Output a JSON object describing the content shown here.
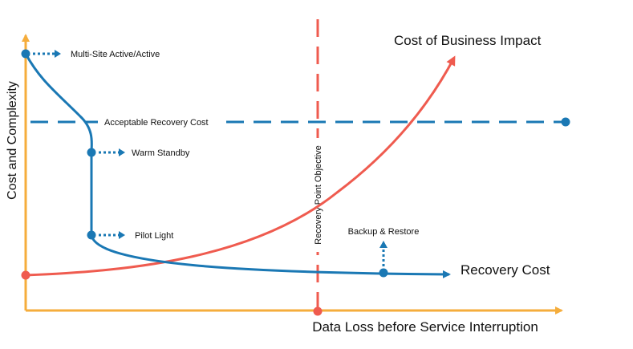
{
  "axes": {
    "y_label": "Cost and Complexity",
    "x_label": "Data Loss before Service Interruption"
  },
  "curves": {
    "recovery_cost": {
      "label": "Recovery Cost",
      "color": "#1a78b4"
    },
    "business_impact": {
      "label": "Cost of Business Impact",
      "color": "#ef5b4f"
    }
  },
  "thresholds": {
    "acceptable_recovery_cost": {
      "label": "Acceptable Recovery Cost",
      "color": "#1a78b4"
    },
    "recovery_point_objective": {
      "label": "Recovery Point Objective",
      "color": "#ef5b4f"
    }
  },
  "strategies": [
    {
      "label": "Multi-Site Active/Active"
    },
    {
      "label": "Warm Standby"
    },
    {
      "label": "Pilot Light"
    },
    {
      "label": "Backup & Restore"
    }
  ],
  "colors": {
    "axis": "#f5ad3c",
    "recovery": "#1a78b4",
    "impact": "#ef5b4f"
  },
  "icons": {
    "axis_arrow": "arrow-head",
    "strategy_pointer": "dotted-arrow"
  }
}
